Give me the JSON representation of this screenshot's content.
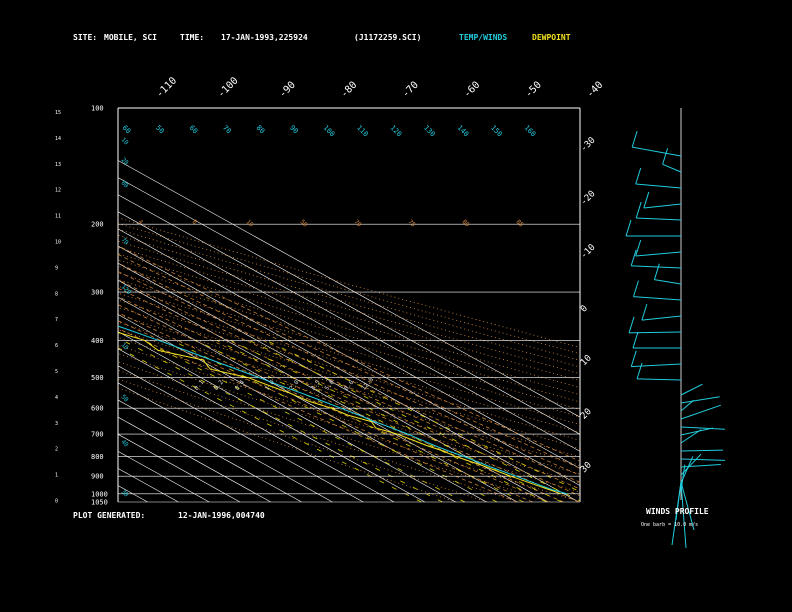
{
  "header": {
    "site_label": "SITE:",
    "site_value": "MOBILE, SCI",
    "time_label": "TIME:",
    "time_value": "17-JAN-1993,225924",
    "file_id": "(J1172259.SCI)",
    "legend_temp": "TEMP/WINDS",
    "legend_dew": "DEWPOINT"
  },
  "footer": {
    "generated_label": "PLOT GENERATED:",
    "generated_value": "12-JAN-1996,004740",
    "winds_title": "WINDS PROFILE",
    "winds_note": "One barb = 10.0 m/s"
  },
  "colors": {
    "background": "#000000",
    "temp": "#22ccdd",
    "dewpoint": "#f0e020",
    "isobar": "#ffffff",
    "isotherm": "#ffffff",
    "adiabat": "#d88a3a",
    "mixing_ratio": "#d8d000",
    "label_blue": "#22ccdd",
    "winds": "#22ccdd"
  },
  "chart_data": {
    "type": "line",
    "title": "",
    "pressure_ticks": [
      "100",
      "200",
      "300",
      "400",
      "500",
      "600",
      "700",
      "800",
      "900",
      "1000",
      "1050"
    ],
    "pressure_values": [
      100,
      200,
      300,
      400,
      500,
      600,
      700,
      800,
      900,
      1000,
      1050
    ],
    "height_ticks": [
      "15",
      "14",
      "13",
      "12",
      "11",
      "10",
      "9",
      "8",
      "7",
      "6",
      "5",
      "4",
      "3",
      "2",
      "1",
      "0"
    ],
    "temp_top_labels": [
      "-110",
      "-100",
      "-90",
      "-80",
      "-70",
      "-60",
      "-50",
      "-40"
    ],
    "temp_right_labels": [
      "-30",
      "-20",
      "-10",
      "0",
      "10",
      "20",
      "30"
    ],
    "mixing_ratio_labels": [
      "0.1",
      "0.2",
      "0.4",
      "1.0",
      "2.0",
      "3.5",
      "5.0",
      "8.0",
      "12.0"
    ],
    "theta_top_labels": [
      "60",
      "50",
      "60",
      "70",
      "80",
      "90",
      "100",
      "110",
      "120",
      "130",
      "140",
      "150",
      "160"
    ],
    "theta_upper_labels": [
      "4",
      "8",
      "10",
      "50",
      "70",
      "75",
      "80",
      "85"
    ],
    "theta_left_labels": [
      "80",
      "70",
      "120",
      "10",
      "50",
      "40",
      "30",
      "20",
      "10"
    ],
    "series": [
      {
        "name": "TEMP/WINDS",
        "pressure": [
          1000,
          975,
          950,
          925,
          900,
          875,
          850,
          825,
          800,
          775,
          750,
          725,
          700,
          675,
          650,
          625,
          600,
          575,
          550,
          525,
          500,
          475,
          450,
          425,
          400,
          375,
          350,
          325,
          300,
          275,
          250,
          225,
          200,
          175,
          150,
          125,
          100
        ],
        "values": [
          11.0,
          8.6,
          7.2,
          6.0,
          4.8,
          3.2,
          1.8,
          0.6,
          -0.8,
          -2.4,
          -3.8,
          -4.8,
          -5.8,
          -7.4,
          -9.4,
          -10.6,
          -12.4,
          -14.2,
          -16.2,
          -18.8,
          -21.0,
          -23.6,
          -26.2,
          -29.0,
          -32.0,
          -35.6,
          -39.6,
          -43.8,
          -48.5,
          -53.2,
          -57.5,
          -61.0,
          -63.0,
          -65.0,
          -66.0,
          -67.0,
          -69.0
        ]
      },
      {
        "name": "DEWPOINT",
        "pressure": [
          1000,
          975,
          950,
          925,
          900,
          875,
          850,
          825,
          800,
          775,
          750,
          725,
          700,
          675,
          650,
          625,
          600,
          575,
          550,
          525,
          500,
          475,
          450,
          425,
          400,
          375,
          350,
          325,
          300,
          275,
          250,
          225,
          200,
          175,
          150,
          125,
          100
        ],
        "values": [
          9.0,
          7.6,
          6.0,
          4.6,
          3.0,
          1.6,
          0.4,
          -1.4,
          -3.4,
          -4.2,
          -6.4,
          -7.8,
          -9.2,
          -12.6,
          -10.4,
          -14.2,
          -15.6,
          -18.8,
          -20.0,
          -22.4,
          -24.6,
          -32.0,
          -29.0,
          -38.0,
          -36.5,
          -42.0,
          -46.8,
          -46.0,
          -53.5,
          -55.0,
          -60.0,
          -63.0,
          -67.0,
          -71.0,
          -73.5,
          -76.0,
          -80.0
        ]
      }
    ],
    "winds_upper": [
      {
        "angle": -20,
        "len": 52
      },
      {
        "angle": -40,
        "len": 24
      },
      {
        "angle": -10,
        "len": 46
      },
      {
        "angle": 12,
        "len": 38
      },
      {
        "angle": -5,
        "len": 45
      },
      {
        "angle": 0,
        "len": 55
      },
      {
        "angle": 10,
        "len": 46
      },
      {
        "angle": -5,
        "len": 50
      },
      {
        "angle": -18,
        "len": 28
      },
      {
        "angle": -8,
        "len": 48
      },
      {
        "angle": 12,
        "len": 40
      },
      {
        "angle": 2,
        "len": 52
      },
      {
        "angle": 0,
        "len": 48
      },
      {
        "angle": 6,
        "len": 50
      },
      {
        "angle": -3,
        "len": 44
      }
    ],
    "winds_lower": [
      {
        "angle": -40,
        "len": 28
      },
      {
        "angle": -15,
        "len": 40
      },
      {
        "angle": -55,
        "len": 22
      },
      {
        "angle": -30,
        "len": 46
      },
      {
        "angle": 5,
        "len": 44
      },
      {
        "angle": -20,
        "len": 34
      },
      {
        "angle": -48,
        "len": 30
      },
      {
        "angle": -2,
        "len": 42
      },
      {
        "angle": 3,
        "len": 44
      },
      {
        "angle": -6,
        "len": 40
      },
      {
        "angle": -60,
        "len": 40
      },
      {
        "angle": -75,
        "len": 46
      },
      {
        "angle": -85,
        "len": 44
      }
    ]
  }
}
